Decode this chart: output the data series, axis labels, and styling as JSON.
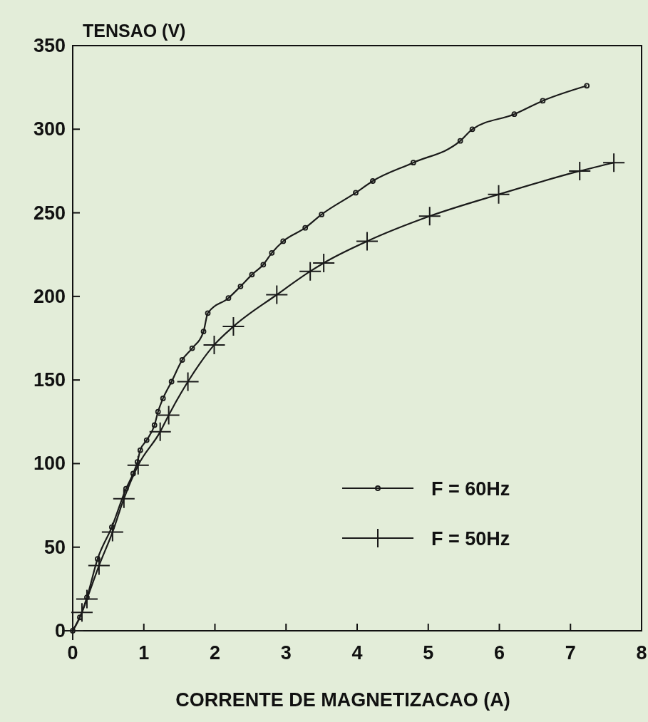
{
  "chart_data": {
    "type": "line",
    "ylabel": "TENSAO (V)",
    "xlabel": "CORRENTE DE MAGNETIZACAO (A)",
    "xlim": [
      0,
      8
    ],
    "xticks": [
      0,
      1,
      2,
      3,
      4,
      5,
      6,
      7,
      8
    ],
    "ylim": [
      0,
      350
    ],
    "yticks": [
      0,
      50,
      100,
      150,
      200,
      250,
      300,
      350
    ],
    "grid": false,
    "legend": "bottom right",
    "line_style": "solid",
    "series": [
      {
        "name": "F = 60Hz",
        "color": "#1a1a1a",
        "marker": "circle",
        "x": [
          0,
          0.1,
          0.2,
          0.35,
          0.55,
          0.75,
          0.85,
          0.91,
          0.95,
          1.04,
          1.15,
          1.2,
          1.27,
          1.39,
          1.54,
          1.68,
          1.84,
          1.9,
          2.19,
          2.36,
          2.52,
          2.68,
          2.8,
          2.96,
          3.27,
          3.5,
          3.98,
          4.22,
          4.79,
          5.45,
          5.62,
          6.21,
          6.61,
          7.23
        ],
        "values": [
          0,
          8,
          20,
          43,
          62,
          85,
          94,
          101,
          108,
          114,
          123,
          131,
          139,
          149,
          162,
          169,
          179,
          190,
          199,
          206,
          213,
          219,
          226,
          233,
          241,
          249,
          262,
          269,
          280,
          293,
          300,
          309,
          317,
          326
        ]
      },
      {
        "name": "F = 50Hz",
        "color": "#1a1a1a",
        "marker": "cross",
        "x": [
          0,
          0.13,
          0.2,
          0.37,
          0.56,
          0.72,
          0.92,
          1.23,
          1.35,
          1.62,
          1.99,
          2.26,
          2.87,
          3.34,
          3.53,
          4.14,
          5.02,
          5.99,
          7.13,
          7.61
        ],
        "values": [
          0,
          11,
          19,
          39,
          59,
          79,
          99,
          119,
          129,
          149,
          171,
          182,
          201,
          215,
          220,
          233,
          248,
          261,
          275,
          280
        ]
      }
    ]
  }
}
